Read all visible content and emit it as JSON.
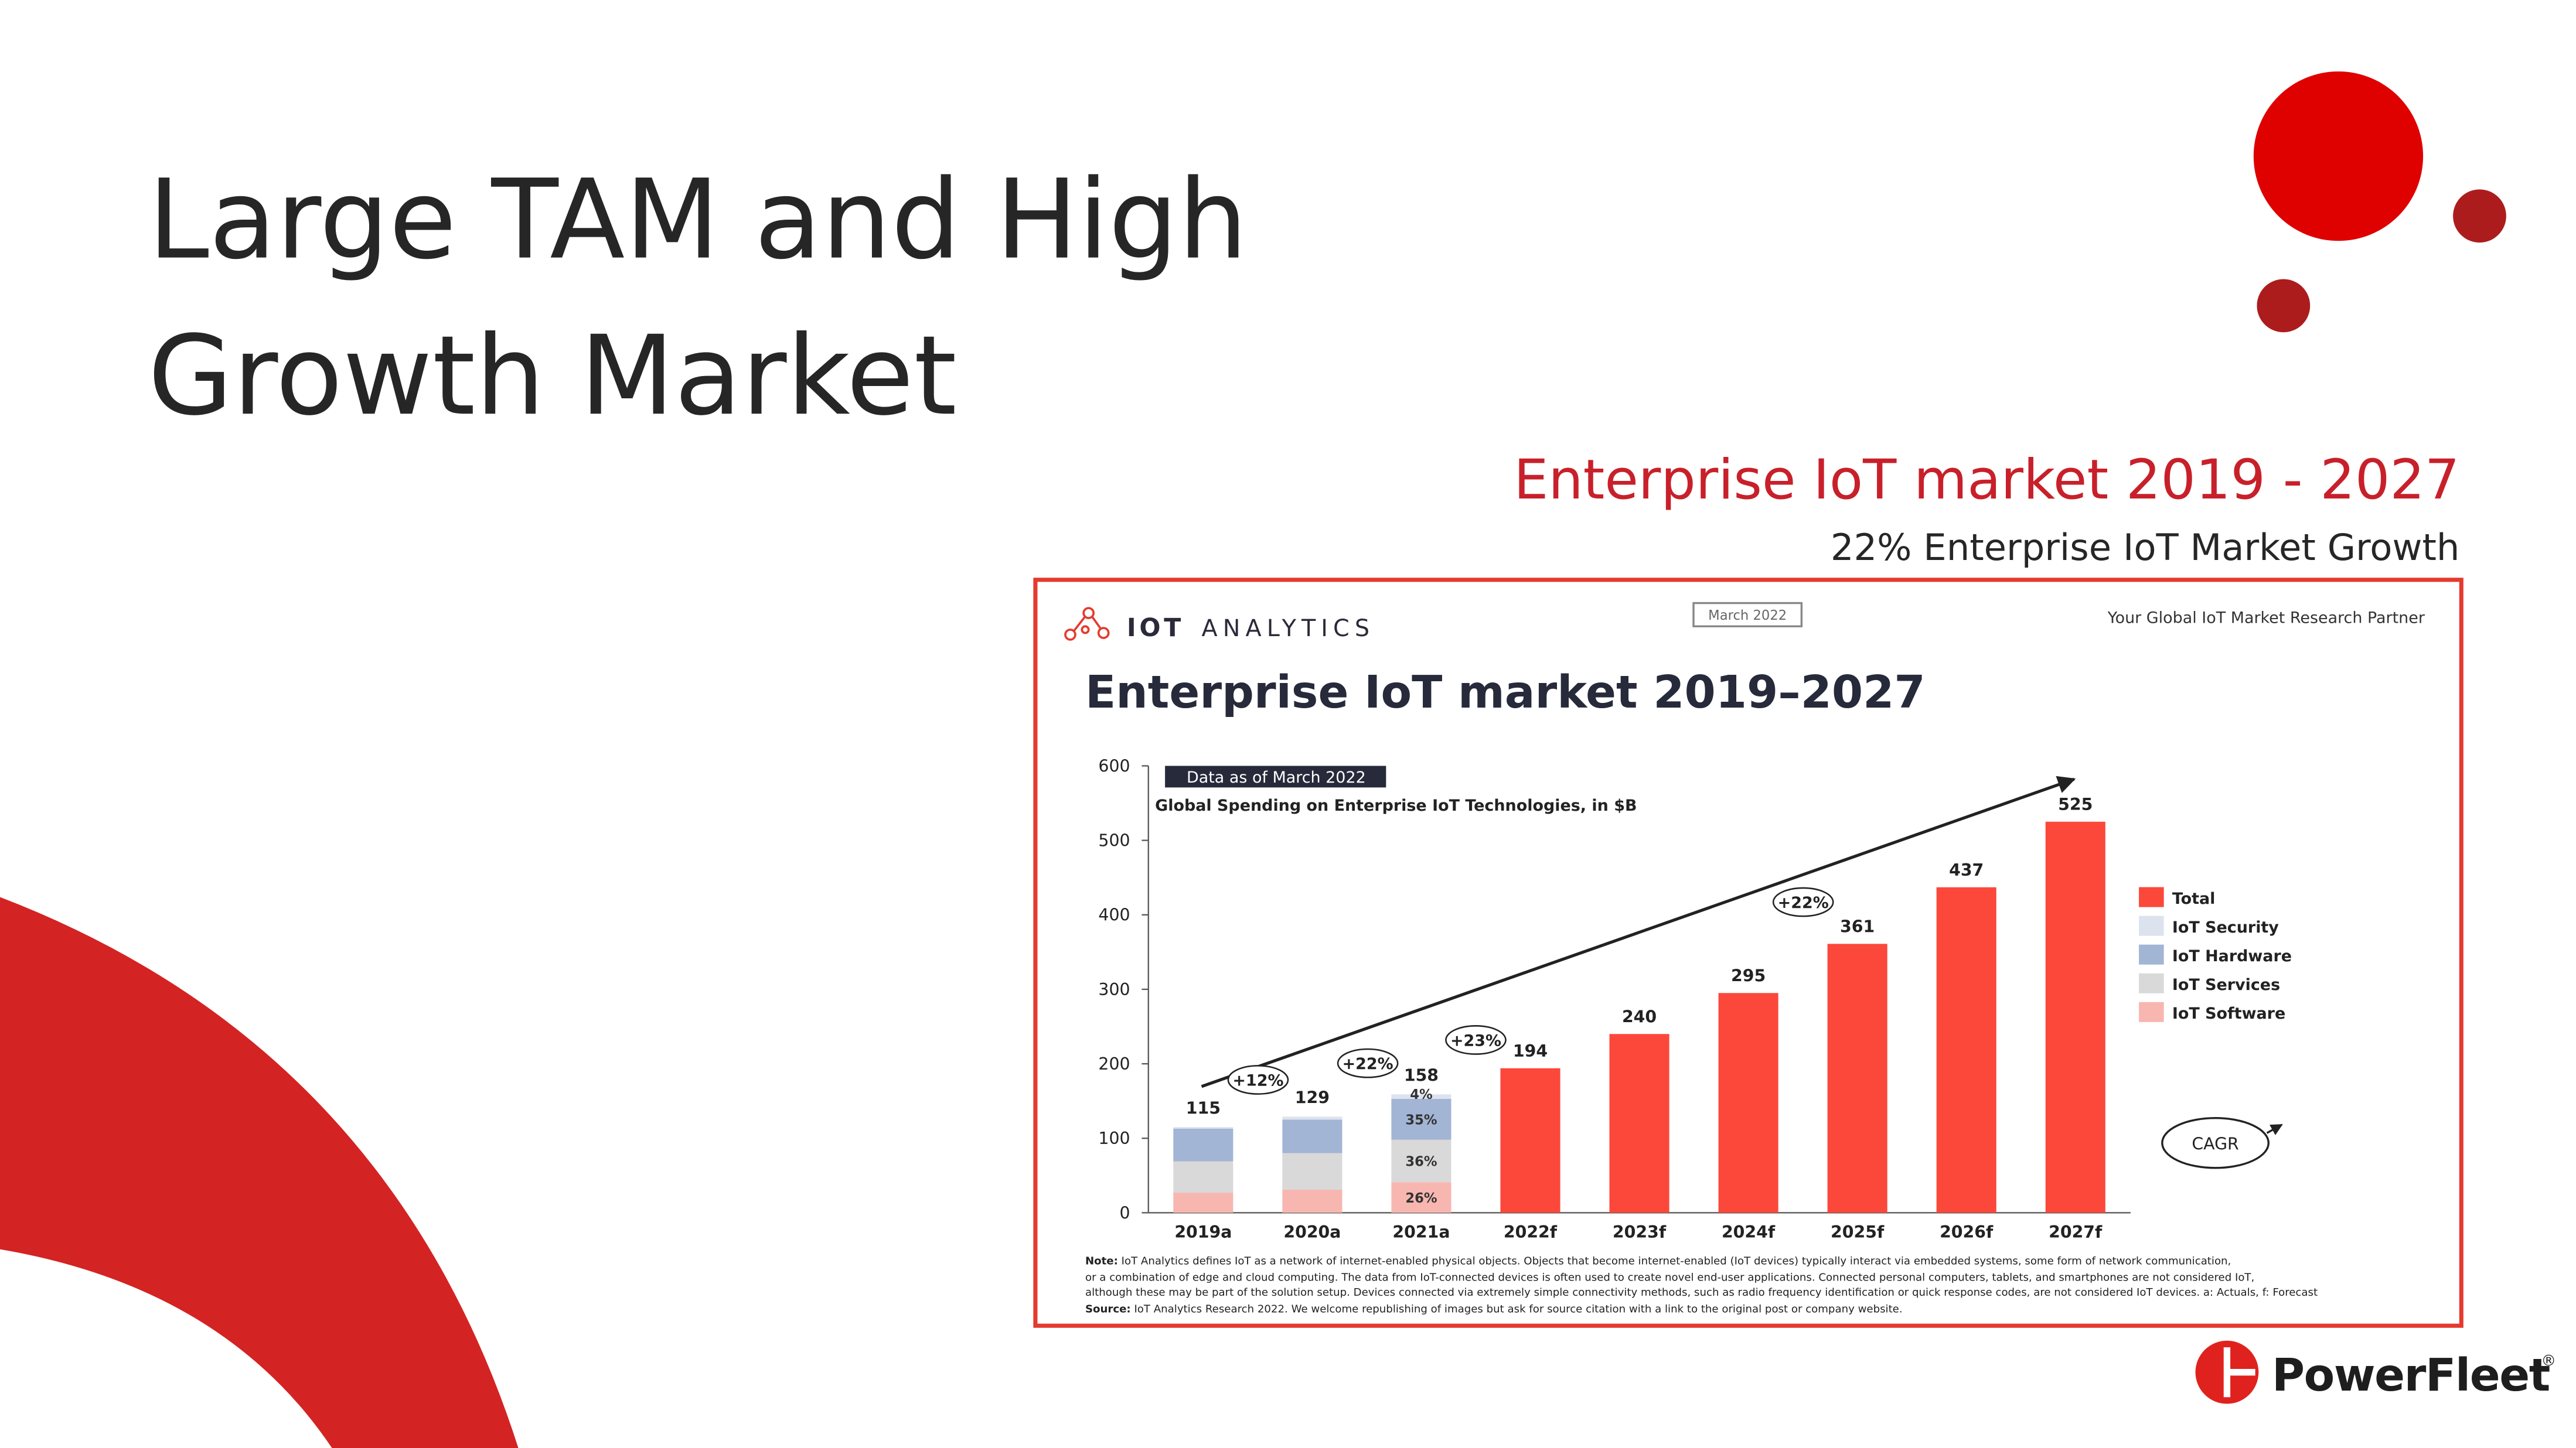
{
  "slide": {
    "title_lines": [
      "Large TAM and High",
      "Growth Market"
    ],
    "subtitle": "Enterprise IoT market 2019 - 2027",
    "tagline": "22% Enterprise IoT Market Growth",
    "logo": "PowerFleet",
    "logo_mark": "®"
  },
  "chart_frame": {
    "brand_bold": "IOT",
    "brand_light": "ANALYTICS",
    "date_badge": "March 2022",
    "partner": "Your Global IoT Market Research Partner",
    "note_label": "Note:",
    "note_lines": [
      " IoT Analytics defines IoT as a network of internet-enabled physical objects. Objects that become internet-enabled (IoT devices) typically interact via embedded systems, some form of network communication,",
      "or a combination of edge and cloud computing. The data from IoT-connected devices is often used to create novel end-user applications. Connected personal computers, tablets, and smartphones are not considered IoT,",
      "although these may be part of the solution setup. Devices connected via extremely simple connectivity methods, such as radio frequency identification or quick response codes, are not considered IoT devices. a: Actuals, f: Forecast"
    ],
    "source_label": "Source:",
    "source_text": " IoT Analytics Research 2022. We welcome republishing of images but ask for source citation with a link to the original post or company website."
  },
  "chart_data": {
    "type": "bar",
    "stacked": true,
    "title": "Enterprise IoT market 2019–2027",
    "data_badge": "Data as of March 2022",
    "subtitle": "Global Spending on Enterprise IoT Technologies, in $B",
    "categories": [
      "2019a",
      "2020a",
      "2021a",
      "2022f",
      "2023f",
      "2024f",
      "2025f",
      "2026f",
      "2027f"
    ],
    "series": [
      {
        "name": "IoT Software",
        "color": "#f8b6b1",
        "values": [
          27,
          31,
          41,
          null,
          null,
          null,
          null,
          null,
          null
        ],
        "value_labels": [
          null,
          null,
          "26%",
          null,
          null,
          null,
          null,
          null,
          null
        ]
      },
      {
        "name": "IoT Services",
        "color": "#d9d9d9",
        "values": [
          42,
          49,
          57,
          null,
          null,
          null,
          null,
          null,
          null
        ],
        "value_labels": [
          null,
          null,
          "36%",
          null,
          null,
          null,
          null,
          null,
          null
        ]
      },
      {
        "name": "IoT Hardware",
        "color": "#a3b5d5",
        "values": [
          44,
          45,
          55,
          null,
          null,
          null,
          null,
          null,
          null
        ],
        "value_labels": [
          null,
          null,
          "35%",
          null,
          null,
          null,
          null,
          null,
          null
        ]
      },
      {
        "name": "IoT Security",
        "color": "#dde3ee",
        "values": [
          2,
          4,
          6,
          null,
          null,
          null,
          null,
          null,
          null
        ],
        "value_labels": [
          null,
          null,
          "4%",
          null,
          null,
          null,
          null,
          null,
          null
        ]
      },
      {
        "name": "Total",
        "color": "#fb483b",
        "values": [
          null,
          null,
          null,
          194,
          240,
          295,
          361,
          437,
          525
        ]
      }
    ],
    "stack_totals": [
      115,
      129,
      158
    ],
    "cagr_labels": [
      "+12%",
      "+22%",
      "+23%",
      "+22%"
    ],
    "cagr_legend": "CAGR",
    "ylim": [
      0,
      600
    ],
    "yticks": [
      0,
      100,
      200,
      300,
      400,
      500,
      600
    ],
    "legend": "right"
  }
}
